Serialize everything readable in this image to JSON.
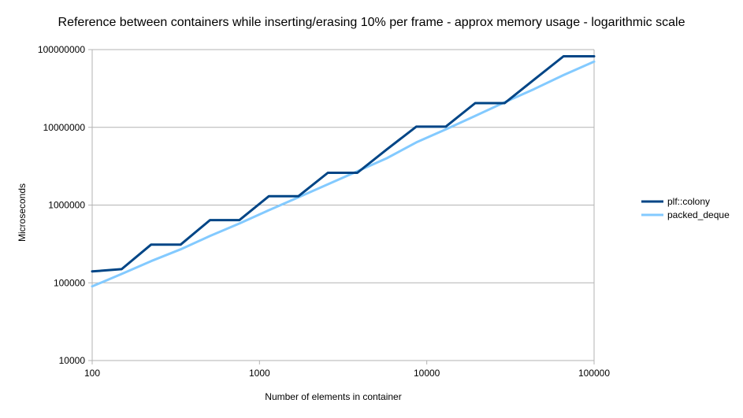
{
  "chart_data": {
    "type": "line",
    "title": "Reference between containers while inserting/erasing 10% per frame - approx memory usage - logarithmic scale",
    "xlabel": "Number of elements in container",
    "ylabel": "Microseconds",
    "x_scale": "log",
    "y_scale": "log",
    "xlim": [
      100,
      100000
    ],
    "ylim": [
      10000,
      100000000
    ],
    "x_ticks": [
      "100",
      "1000",
      "10000",
      "100000"
    ],
    "y_ticks": [
      "10000",
      "100000",
      "1000000",
      "10000000",
      "100000000"
    ],
    "grid": "horizontal",
    "legend_position": "right",
    "series": [
      {
        "name": "plf::colony",
        "color": "#004586",
        "x": [
          100,
          150,
          225,
          338,
          506,
          759,
          1139,
          1709,
          2563,
          3844,
          5767,
          8650,
          12975,
          19462,
          29193,
          43789,
          65684,
          100000
        ],
        "y": [
          140000,
          150000,
          310000,
          310000,
          640000,
          640000,
          1300000,
          1300000,
          2600000,
          2600000,
          5200000,
          10200000,
          10200000,
          20500000,
          20500000,
          41000000,
          82000000,
          82000000
        ]
      },
      {
        "name": "packed_deque",
        "color": "#83caff",
        "x": [
          100,
          150,
          225,
          338,
          506,
          759,
          1139,
          1709,
          2563,
          3844,
          5767,
          8650,
          12975,
          19462,
          29193,
          43789,
          65684,
          100000
        ],
        "y": [
          90000,
          130000,
          190000,
          270000,
          400000,
          580000,
          860000,
          1260000,
          1850000,
          2720000,
          4000000,
          6400000,
          9400000,
          14000000,
          21000000,
          31000000,
          47000000,
          70000000
        ]
      }
    ]
  }
}
